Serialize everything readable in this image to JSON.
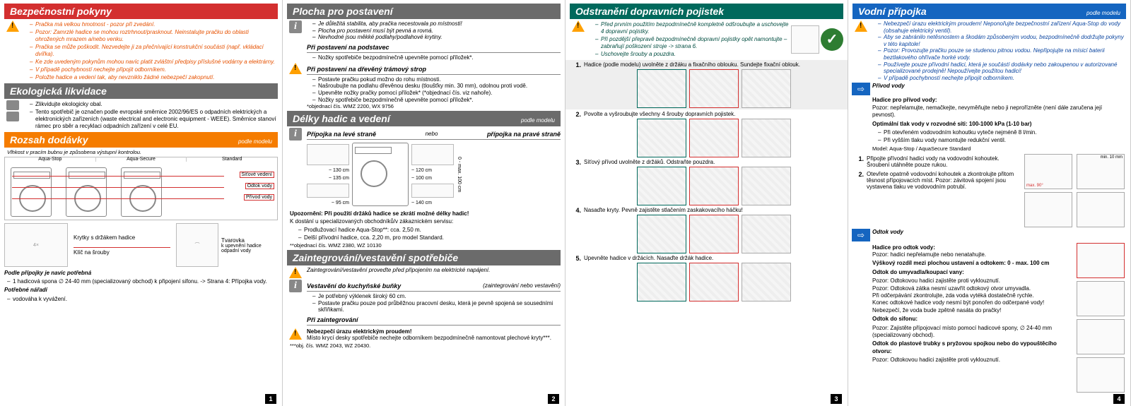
{
  "page1": {
    "safety": {
      "title": "Bezpečnostní pokyny",
      "items": [
        "Pračka má velkou hmotnost - pozor při zvedání.",
        "Pozor: Zamrzlé hadice se mohou roztrhnout/prasknout. Neinstalujte pračku do oblasti ohrožených mrazem a/nebo venku.",
        "Pračka se může poškodit. Nezvedejte ji za přečnívající konstrukční součásti (např. vkládací dvířka).",
        "Ke zde uvedeným pokynům mohou navíc platit zvláštní předpisy příslušné vodárny a elektrárny.",
        "V případě pochybností nechejte připojit odborníkem.",
        "Položte hadice a vedení tak, aby nevzniklo žádné nebezpečí zakopnutí."
      ]
    },
    "eco": {
      "title": "Ekologická likvidace",
      "items": [
        "Zlikvidujte ekologicky obal.",
        "Tento spotřebič je označen podle evropské směrnice 2002/96/ES o odpadních elektrických a elektronických zařízeních (waste electrical and electronic equipment - WEEE). Směrnice stanoví rámec pro sběr a recyklaci odpadních zařízení v celé EU."
      ]
    },
    "scope": {
      "title": "Rozsah dodávky",
      "sub": "podle modelu",
      "note": "Vlhkost v pracím bubnu je způsobena výstupní kontrolou.",
      "models": [
        "Aqua-Stop",
        "Aqua-Secure",
        "Standard"
      ],
      "labels": [
        "Síťové vedení",
        "Odtok vody",
        "Přívod vody"
      ],
      "parts": {
        "a": "Krytky s držákem hadice",
        "b": "Klíč na šrouby",
        "c": "Tvarovka",
        "d": "k upevnění hadice odpadní vody"
      },
      "need_title": "Podle přípojky je navíc potřebná",
      "need_items": [
        "1 hadicová spona ∅ 24-40 mm (specializovaný obchod) k připojení sifonu. -> Strana 4: Přípojka vody."
      ],
      "tools_title": "Potřebné nářadí",
      "tools_items": [
        "vodováha k vyvážení."
      ]
    },
    "num": "1"
  },
  "page2": {
    "place": {
      "title": "Plocha pro postavení",
      "intro": [
        "Je důležitá stabilita, aby pračka necestovala po místnosti!",
        "Plocha pro postavení musí být pevná a rovná.",
        "Nevhodné jsou měkké podlahy/podlahové krytiny."
      ],
      "sub1_title": "Při postavení na podstavec",
      "sub1_items": [
        "Nožky spotřebiče bezpodmínečně upevněte pomocí příložek*."
      ],
      "sub2_title": "Při postavení na dřevěný trámový strop",
      "sub2_items": [
        "Postavte pračku pokud možno do rohu místnosti.",
        "Našroubujte na podlahu dřevěnou desku (tloušťky min. 30 mm), odolnou proti vodě.",
        "Upevněte nožky pračky pomocí příložek* (*objednací čís. viz nahoře).",
        "Nožky spotřebiče bezpodmínečně upevněte pomocí příložek*."
      ],
      "foot": "*objednací čís. WMZ 2200, WX 9756"
    },
    "hoses": {
      "title": "Délky hadic a vedení",
      "sub": "podle modelu",
      "left": "Přípojka na levé straně",
      "or": "nebo",
      "right": "přípojka na pravé straně",
      "dims": {
        "l1": "~ 130 cm",
        "l2": "~ 135 cm",
        "l3": "~ 95 cm",
        "r1": "~ 120 cm",
        "r2": "~ 100 cm",
        "r3": "~ 140 cm",
        "h": "0 - max. 100 cm"
      },
      "note_title": "Upozornění: Při použití držáků hadice se zkrátí možné délky hadic!",
      "note_body": "K dostání u specializovaných obchodníků/v zákaznickém servisu:",
      "note_items": [
        "Prodlužovací hadice Aqua-Stop**: cca. 2,50 m.",
        "Delší přívodní hadice, cca. 2,20 m, pro model Standard."
      ],
      "foot": "**objednací čís. WMZ 2380, WZ 10130"
    },
    "integ": {
      "title": "Zaintegrování/vestavění spotřebiče",
      "intro": "Zaintegrování/vestavění proveďte před připojením na elektrické napájení.",
      "sub1_title": "Vestavění do kuchyňské buňky",
      "sub1_note": "(zaintegrování nebo vestavění)",
      "sub1_items": [
        "Je potřebný výklenek široký 60 cm.",
        "Postavte pračku pouze pod průběžnou pracovní desku, která je pevně spojená se sousedními skříňkami."
      ],
      "sub2_title": "Při zaintegrování",
      "danger": "Nebezpečí úrazu elektrickým proudem!",
      "danger_body": "Místo krycí desky spotřebiče nechejte odborníkem bezpodmínečně namontovat plechové kryty***.",
      "foot": "***obj. čís. WMZ 2043, WZ 20430."
    },
    "num": "2"
  },
  "page3": {
    "transport": {
      "title": "Odstranění dopravních pojistek",
      "intro": [
        "Před prvním použitím bezpodmínečně kompletně odšroubujte a uschovejte 4 dopravní pojistky.",
        "Při pozdější přepravě bezpodmínečně dopravní pojistky opět namontujte – zabraňují poškození stroje -> strana 6.",
        "Uschovejte šrouby a pouzdra."
      ],
      "steps": [
        {
          "n": "1.",
          "t": "Hadice (podle modelu) uvolněte z držáku a fixačního oblouku. Sundejte fixační oblouk."
        },
        {
          "n": "2.",
          "t": "Povolte a vyšroubujte všechny 4 šrouby dopravních pojistek."
        },
        {
          "n": "3.",
          "t": "Síťový přívod uvolněte z držáků. Odstraňte pouzdra."
        },
        {
          "n": "4.",
          "t": "Nasaďte kryty. Pevně zajistěte stlačením zaskakovacího háčku!"
        },
        {
          "n": "5.",
          "t": "Upevněte hadice v držácích. Nasaďte držák hadice."
        }
      ]
    },
    "num": "3"
  },
  "page4": {
    "water": {
      "title": "Vodní přípojka",
      "sub": "podle modelu",
      "intro": [
        "Nebezpečí úrazu elektrickým proudem! Neponořujte bezpečnostní zařízení Aqua-Stop do vody (obsahuje elektrický ventil).",
        "Aby se zabránilo netěsnostem a škodám způsobeným vodou, bezpodmínečně dodržujte pokyny v této kapitole!",
        "Pozor: Provozujte pračku pouze se studenou pitnou vodou. Nepřipojujte na mísicí baterii beztlakového ohřívače horké vody.",
        "Používejte pouze přívodní hadici, která je součástí dodávky nebo zakoupenou v autorizované specializované prodejně! Nepoužívejte použitou hadici!",
        "V případě pochybností nechejte připojit odborníkem."
      ],
      "inlet_title": "Přívod vody",
      "inlet_sub": "Hadice pro přívod vody:",
      "inlet_warn": "Pozor: nepřelamujte, nemačkejte, nevyměňujte nebo ji neprořízněte (není dále zaručena její pevnost).",
      "pressure": "Optimální tlak vody v rozvodné síti: 100-1000 kPa (1-10 bar)",
      "pressure_items": [
        "Při otevřeném vodovodním kohoutku vyteče nejméně 8 l/min.",
        "Při vyšším tlaku vody namontujte redukční ventil."
      ],
      "model_row": "Model: Aqua-Stop / AquaSecure   Standard",
      "steps": [
        {
          "n": "1.",
          "t": "Připojte přívodní hadici vody na vodovodní kohoutek. Šroubení utáhněte pouze rukou."
        },
        {
          "n": "2.",
          "t": "Otevřete opatrně vodovodní kohoutek a zkontrolujte přitom těsnost přípojovacích míst. Pozor: závitová spojení jsou vystavena tlaku ve vodovodním potrubí."
        }
      ],
      "fig_labels": {
        "max": "max. 90°",
        "min": "min. 10 mm"
      },
      "outlet_title": "Odtok vody",
      "outlet_sub": "Hadice pro odtok vody:",
      "outlet_warn": "Pozor: hadici nepřelamujte nebo nenatahujte.",
      "height": "Výškový rozdíl mezi plochou ustavení a odtokem: 0 - max. 100 cm",
      "sink_title": "Odtok do umyvadla/koupací vany:",
      "sink_items": [
        "Pozor: Odtokovou hadici zajistěte proti vyklouznutí.",
        "Pozor: Odtoková zátka nesmí uzavřít odtokový otvor umyvadla.",
        "Při odčerpávání zkontrolujte, zda voda vytéká dostatečně rychle.",
        "Konec odtokové hadice vody nesmí být ponořen do odčerpané vody! Nebezpečí, že voda bude zpětně nasáta do pračky!"
      ],
      "siphon_title": "Odtok do sifonu:",
      "siphon_body": "Pozor: Zajistěte přípojovací místo pomocí hadicové spony, ∅ 24-40 mm (specializovaný obchod).",
      "pipe_title": "Odtok do plastové trubky s pryžovou spojkou nebo do vypouštěcího otvoru:",
      "pipe_body": "Pozor: Odtokovou hadici zajistěte proti vyklouznutí."
    },
    "num": "4"
  }
}
